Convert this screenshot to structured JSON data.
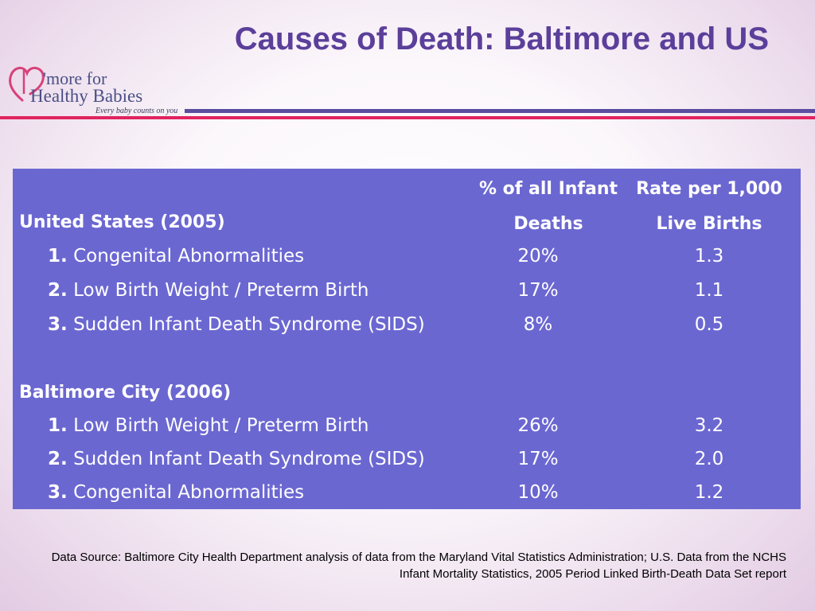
{
  "slide": {
    "title": "Causes of Death:  Baltimore and US"
  },
  "logo": {
    "line1": "'more for",
    "line2": "Healthy Babies",
    "tagline": "Every baby counts on you"
  },
  "table": {
    "columns": [
      "% of all Infant Deaths",
      "Rate per 1,000 Live Births"
    ],
    "col1_line1": "% of all Infant",
    "col1_line2": "Deaths",
    "col2_line1": "Rate per 1,000",
    "col2_line2": "Live Births",
    "sections": [
      {
        "heading": "United States (2005)",
        "rows": [
          {
            "num": "1.",
            "cause": "Congenital Abnormalities",
            "pct": "20%",
            "rate": "1.3"
          },
          {
            "num": "2.",
            "cause": "Low Birth Weight / Preterm Birth",
            "pct": "17%",
            "rate": "1.1"
          },
          {
            "num": "3.",
            "cause": "Sudden Infant Death Syndrome (SIDS)",
            "pct": "8%",
            "rate": "0.5"
          }
        ]
      },
      {
        "heading": "Baltimore City (2006)",
        "rows": [
          {
            "num": "1.",
            "cause": "Low Birth Weight / Preterm Birth",
            "pct": "26%",
            "rate": "3.2"
          },
          {
            "num": "2.",
            "cause": "Sudden Infant Death Syndrome (SIDS)",
            "pct": "17%",
            "rate": "2.0"
          },
          {
            "num": "3.",
            "cause": "Congenital Abnormalities",
            "pct": "10%",
            "rate": "1.2"
          }
        ]
      }
    ]
  },
  "footer": {
    "source": "Data Source: Baltimore City Health Department analysis of data from the Maryland Vital Statistics Administration; U.S. Data from the NCHS Infant Mortality Statistics, 2005 Period Linked Birth-Death Data Set report"
  },
  "colors": {
    "title": "#5b3f9a",
    "table_bg": "#6b67d1",
    "rule_purple": "#5b4da0",
    "rule_pink": "#e0245f"
  }
}
